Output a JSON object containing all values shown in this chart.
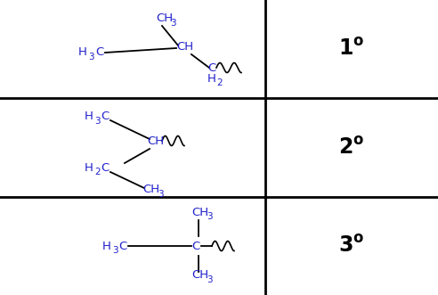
{
  "figsize": [
    4.92,
    3.31
  ],
  "dpi": 100,
  "bg_color": "#ffffff",
  "grid_color": "#000000",
  "text_color": "#000000",
  "blue_color": "#2020cc",
  "col_split": 0.605,
  "degrees": [
    "$\\mathbf{1^o}$",
    "$\\mathbf{2^o}$",
    "$\\mathbf{3^o}$"
  ],
  "degree_fontsize": 17,
  "chem_fontsize": 9.5,
  "sub_fontsize": 7.5,
  "line_color": "#000000"
}
